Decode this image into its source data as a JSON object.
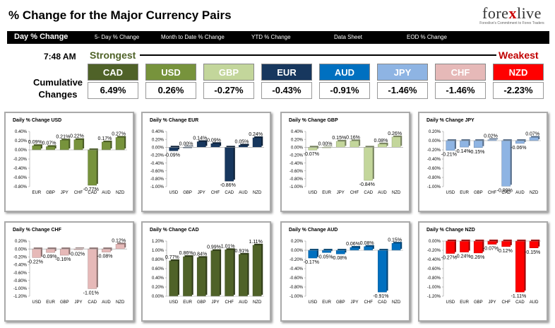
{
  "header": {
    "title": "% Change for the Major Currency Pairs",
    "logo_main": "forexlive",
    "logo_sub": "Forexlive's Commitment to Forex Traders"
  },
  "tabs": [
    {
      "label": "Day % Change"
    },
    {
      "label": "5- Day % Change"
    },
    {
      "label": "Month to Date % Change"
    },
    {
      "label": "YTD % Change"
    },
    {
      "label": "Data Sheet"
    },
    {
      "label": "EOD % Change"
    }
  ],
  "summary": {
    "time": "7:48 AM",
    "strongest_label": "Strongest",
    "weakest_label": "Weakest",
    "cumulative_label": "Cumulative Changes",
    "currencies": [
      {
        "code": "CAD",
        "value": "6.49%",
        "color": "#4f6228"
      },
      {
        "code": "USD",
        "value": "0.26%",
        "color": "#77933c"
      },
      {
        "code": "GBP",
        "value": "-0.27%",
        "color": "#c3d69b"
      },
      {
        "code": "EUR",
        "value": "-0.43%",
        "color": "#17375e"
      },
      {
        "code": "AUD",
        "value": "-0.91%",
        "color": "#0070c0"
      },
      {
        "code": "JPY",
        "value": "-1.46%",
        "color": "#8eb4e3"
      },
      {
        "code": "CHF",
        "value": "-1.46%",
        "color": "#e6b9b8"
      },
      {
        "code": "NZD",
        "value": "-2.23%",
        "color": "#ff0000"
      }
    ]
  },
  "chart_data": [
    {
      "type": "bar",
      "title": "Daily % Change USD",
      "categories": [
        "EUR",
        "GBP",
        "JPY",
        "CHF",
        "CAD",
        "AUD",
        "NZD"
      ],
      "values": [
        0.09,
        0.07,
        0.21,
        0.22,
        -0.77,
        0.17,
        0.27
      ],
      "labels": [
        "0.09%",
        "0.07%",
        "0.21%",
        "0.22%",
        "-0.77%",
        "0.17%",
        "0.27%"
      ],
      "ylim": [
        -0.8,
        0.4
      ],
      "ticks": [
        0.4,
        0.2,
        0.0,
        -0.2,
        -0.4,
        -0.6,
        -0.8
      ],
      "tick_labels": [
        "0.40%",
        "0.20%",
        "0.00%",
        "-0.20%",
        "-0.40%",
        "-0.60%",
        "-0.80%"
      ],
      "color": "#77933c"
    },
    {
      "type": "bar",
      "title": "Daily % Change EUR",
      "categories": [
        "USD",
        "GBP",
        "JPY",
        "CHF",
        "CAD",
        "AUD",
        "NZD"
      ],
      "values": [
        -0.09,
        0.0,
        0.14,
        0.09,
        -0.86,
        0.05,
        0.24
      ],
      "labels": [
        "-0.09%",
        "0.00%",
        "0.14%",
        "0.09%",
        "-0.86%",
        "0.05%",
        "0.24%"
      ],
      "ylim": [
        -1.0,
        0.4
      ],
      "ticks": [
        0.4,
        0.2,
        0.0,
        -0.2,
        -0.4,
        -0.6,
        -0.8,
        -1.0
      ],
      "tick_labels": [
        "0.40%",
        "0.20%",
        "0.00%",
        "-0.20%",
        "-0.40%",
        "-0.60%",
        "-0.80%",
        "-1.00%"
      ],
      "color": "#17375e"
    },
    {
      "type": "bar",
      "title": "Daily % Change GBP",
      "categories": [
        "USD",
        "EUR",
        "JPY",
        "CHF",
        "CAD",
        "AUD",
        "NZD"
      ],
      "values": [
        -0.07,
        0.0,
        0.15,
        0.16,
        -0.84,
        0.08,
        0.26
      ],
      "labels": [
        "-0.07%",
        "0.00%",
        "0.15%",
        "0.16%",
        "-0.84%",
        "0.08%",
        "0.26%"
      ],
      "ylim": [
        -1.0,
        0.4
      ],
      "ticks": [
        0.4,
        0.2,
        0.0,
        -0.2,
        -0.4,
        -0.6,
        -0.8,
        -1.0
      ],
      "tick_labels": [
        "0.40%",
        "0.20%",
        "0.00%",
        "-0.20%",
        "-0.40%",
        "-0.60%",
        "-0.80%",
        "-1.00%"
      ],
      "color": "#c3d69b"
    },
    {
      "type": "bar",
      "title": "Daily % Change JPY",
      "categories": [
        "USD",
        "EUR",
        "GBP",
        "CHF",
        "CAD",
        "AUD",
        "NZD"
      ],
      "values": [
        -0.21,
        -0.14,
        -0.15,
        0.02,
        -0.99,
        -0.06,
        0.07
      ],
      "labels": [
        "-0.21%",
        "-0.14%",
        "-0.15%",
        "0.02%",
        "-0.99%",
        "-0.06%",
        "0.07%"
      ],
      "ylim": [
        -1.0,
        0.2
      ],
      "ticks": [
        0.2,
        0.0,
        -0.2,
        -0.4,
        -0.6,
        -0.8,
        -1.0
      ],
      "tick_labels": [
        "0.20%",
        "0.00%",
        "-0.20%",
        "-0.40%",
        "-0.60%",
        "-0.80%",
        "-1.00%"
      ],
      "color": "#8eb4e3"
    },
    {
      "type": "bar",
      "title": "Daily % Change CHF",
      "categories": [
        "USD",
        "EUR",
        "GBP",
        "JPY",
        "CAD",
        "AUD",
        "NZD"
      ],
      "values": [
        -0.22,
        -0.09,
        -0.16,
        -0.02,
        -1.01,
        -0.08,
        0.12
      ],
      "labels": [
        "-0.22%",
        "-0.09%",
        "-0.16%",
        "-0.02%",
        "-1.01%",
        "-0.08%",
        "0.12%"
      ],
      "ylim": [
        -1.2,
        0.2
      ],
      "ticks": [
        0.2,
        0.0,
        -0.2,
        -0.4,
        -0.6,
        -0.8,
        -1.0,
        -1.2
      ],
      "tick_labels": [
        "0.20%",
        "0.00%",
        "-0.20%",
        "-0.40%",
        "-0.60%",
        "-0.80%",
        "-1.00%",
        "-1.20%"
      ],
      "color": "#e6b9b8"
    },
    {
      "type": "bar",
      "title": "Daily % Change CAD",
      "categories": [
        "USD",
        "EUR",
        "GBP",
        "JPY",
        "CHF",
        "AUD",
        "NZD"
      ],
      "values": [
        0.77,
        0.86,
        0.84,
        0.99,
        1.01,
        0.91,
        1.11
      ],
      "labels": [
        "0.77%",
        "0.86%",
        "0.84%",
        "0.99%",
        "1.01%",
        "0.91%",
        "1.11%"
      ],
      "ylim": [
        0.0,
        1.2
      ],
      "ticks": [
        1.2,
        1.0,
        0.8,
        0.6,
        0.4,
        0.2,
        0.0
      ],
      "tick_labels": [
        "1.20%",
        "1.00%",
        "0.80%",
        "0.60%",
        "0.40%",
        "0.20%",
        "0.00%"
      ],
      "color": "#4f6228"
    },
    {
      "type": "bar",
      "title": "Daily % Change AUD",
      "categories": [
        "USD",
        "EUR",
        "GBP",
        "JPY",
        "CHF",
        "CAD",
        "NZD"
      ],
      "values": [
        -0.17,
        -0.05,
        -0.08,
        0.06,
        0.08,
        -0.91,
        0.15
      ],
      "labels": [
        "-0.17%",
        "-0.05%",
        "-0.08%",
        "0.06%",
        "0.08%",
        "-0.91%",
        "0.15%"
      ],
      "ylim": [
        -1.0,
        0.2
      ],
      "ticks": [
        0.2,
        0.0,
        -0.2,
        -0.4,
        -0.6,
        -0.8,
        -1.0
      ],
      "tick_labels": [
        "0.20%",
        "0.00%",
        "-0.20%",
        "-0.40%",
        "-0.60%",
        "-0.80%",
        "-1.00%"
      ],
      "color": "#0070c0"
    },
    {
      "type": "bar",
      "title": "Daily % Change NZD",
      "categories": [
        "USD",
        "EUR",
        "GBP",
        "JPY",
        "CHF",
        "CAD",
        "AUD"
      ],
      "values": [
        -0.27,
        -0.24,
        -0.26,
        -0.07,
        -0.12,
        -1.11,
        -0.15
      ],
      "labels": [
        "-0.27%",
        "-0.24%",
        "-0.26%",
        "-0.07%",
        "-0.12%",
        "-1.11%",
        "-0.15%"
      ],
      "ylim": [
        -1.2,
        0.0
      ],
      "ticks": [
        0.0,
        -0.2,
        -0.4,
        -0.6,
        -0.8,
        -1.0,
        -1.2
      ],
      "tick_labels": [
        "0.00%",
        "-0.20%",
        "-0.40%",
        "-0.60%",
        "-0.80%",
        "-1.00%",
        "-1.20%"
      ],
      "color": "#ff0000"
    }
  ]
}
